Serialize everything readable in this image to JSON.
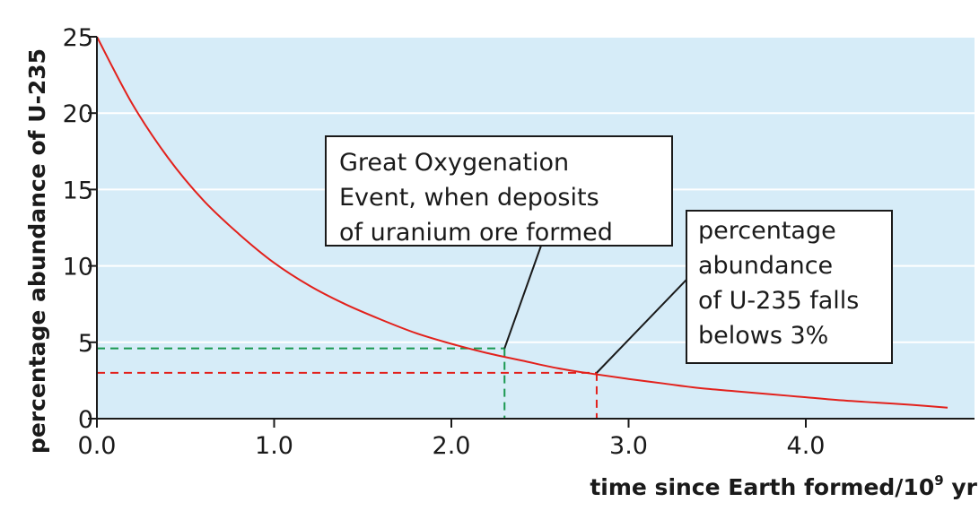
{
  "chart_data": {
    "type": "line",
    "xlabel_main": "time since Earth formed/10",
    "xlabel_sup": "9",
    "xlabel_unit": " yr",
    "ylabel": "percentage abundance of U-235",
    "xlim": [
      0,
      4.8
    ],
    "ylim": [
      0,
      25
    ],
    "x_ticks": [
      0.0,
      1.0,
      2.0,
      3.0,
      4.0
    ],
    "x_tick_labels": [
      "0.0",
      "1.0",
      "2.0",
      "3.0",
      "4.0"
    ],
    "y_ticks": [
      0,
      5,
      10,
      15,
      20,
      25
    ],
    "y_tick_labels": [
      "0",
      "5",
      "10",
      "15",
      "20",
      "25"
    ],
    "grid": "horizontal",
    "series": [
      {
        "x": [
          0,
          0.2,
          0.4,
          0.6,
          0.8,
          1.0,
          1.2,
          1.4,
          1.6,
          1.8,
          2.0,
          2.2,
          2.4,
          2.6,
          2.8,
          3.0,
          3.2,
          3.4,
          3.6,
          3.8,
          4.0,
          4.2,
          4.4,
          4.6,
          4.8
        ],
        "y": [
          25.0,
          20.6,
          17.1,
          14.3,
          12.1,
          10.2,
          8.7,
          7.5,
          6.5,
          5.6,
          4.9,
          4.3,
          3.8,
          3.3,
          2.93,
          2.6,
          2.3,
          2.0,
          1.8,
          1.6,
          1.4,
          1.2,
          1.05,
          0.9,
          0.72
        ],
        "color": "#e2211c"
      }
    ],
    "reference_points": [
      {
        "x": 2.3,
        "y": 4.6,
        "color": "#1a9850"
      },
      {
        "x": 2.82,
        "y": 3.0,
        "color": "#e2211c"
      }
    ],
    "annotations": [
      {
        "lines": [
          "Great Oxygenation",
          "Event, when deposits",
          "of uranium ore formed"
        ],
        "points_to": [
          2.3,
          4.6
        ]
      },
      {
        "lines": [
          "percentage",
          "abundance",
          "of U-235 falls",
          "belows 3%"
        ],
        "points_to": [
          2.82,
          3.0
        ]
      }
    ],
    "colors": {
      "plot_background": "#d6ecf8",
      "grid": "#ffffff",
      "curve": "#e2211c",
      "green_ref": "#1a9850"
    }
  }
}
